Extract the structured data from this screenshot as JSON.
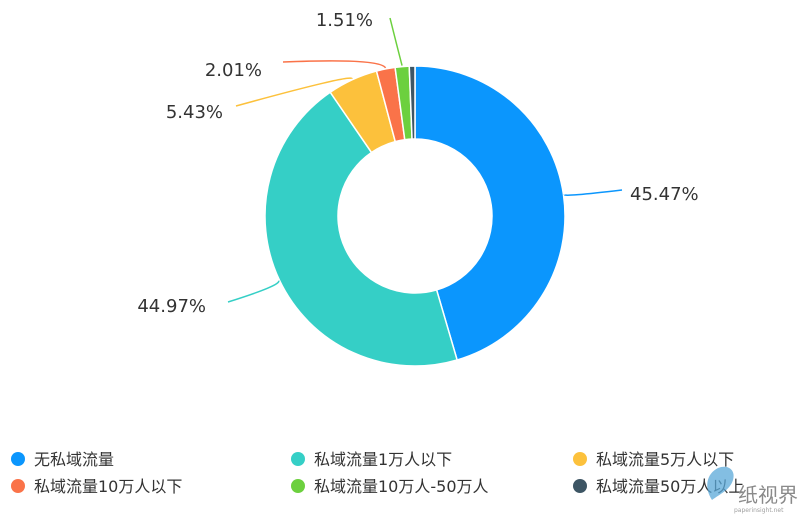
{
  "chart_data": {
    "type": "pie",
    "variant": "donut",
    "title": "",
    "labels": [
      "无私域流量",
      "私域流量1万人以下",
      "私域流量5万人以下",
      "私域流量10万人以下",
      "私域流量10万人-50万人",
      "私域流量50万人以上"
    ],
    "values": [
      45.47,
      44.97,
      5.43,
      2.01,
      1.51,
      0.61
    ],
    "value_labels": [
      "45.47%",
      "44.97%",
      "5.43%",
      "2.01%",
      "1.51%",
      ""
    ],
    "colors": [
      "#0b96fd",
      "#35cfc6",
      "#fcc13c",
      "#fa7349",
      "#6cd03e",
      "#3d5564"
    ],
    "legend_position": "bottom"
  },
  "watermark": {
    "logo": "纸视界",
    "url": "paperinsight.net"
  }
}
